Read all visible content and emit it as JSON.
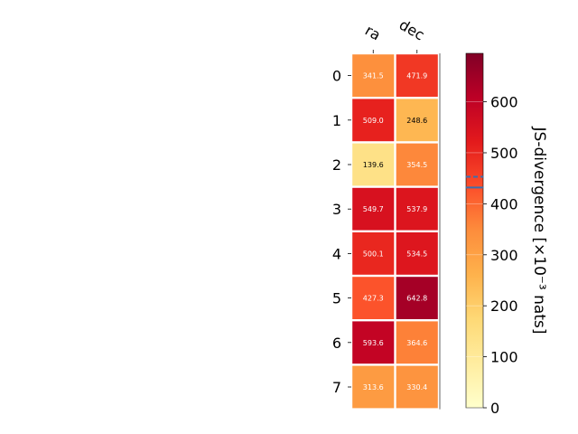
{
  "chart_data": {
    "type": "heatmap",
    "columns": [
      "ra",
      "dec"
    ],
    "rows": [
      "0",
      "1",
      "2",
      "3",
      "4",
      "5",
      "6",
      "7"
    ],
    "values": [
      [
        341.5,
        471.9
      ],
      [
        509.0,
        248.6
      ],
      [
        139.6,
        354.5
      ],
      [
        549.7,
        537.9
      ],
      [
        500.1,
        534.5
      ],
      [
        427.3,
        642.8
      ],
      [
        593.6,
        364.6
      ],
      [
        313.6,
        330.4
      ]
    ],
    "cell_labels": [
      [
        "341.5",
        "471.9"
      ],
      [
        "509.0",
        "248.6"
      ],
      [
        "139.6",
        "354.5"
      ],
      [
        "549.7",
        "537.9"
      ],
      [
        "500.1",
        "534.5"
      ],
      [
        "427.3",
        "642.8"
      ],
      [
        "593.6",
        "364.6"
      ],
      [
        "313.6",
        "330.4"
      ]
    ],
    "colorbar": {
      "label": "JS-divergence [×10⁻³ nats]",
      "range": [
        0,
        695
      ],
      "ticks": [
        0,
        100,
        200,
        300,
        400,
        500,
        600
      ],
      "tick_labels": [
        "0",
        "100",
        "200",
        "300",
        "400",
        "500",
        "600"
      ],
      "colormap": "YlOrRd",
      "markers": [
        {
          "value": 432,
          "style": "solid",
          "color": "#3a6fb0"
        },
        {
          "value": 453,
          "style": "dashed",
          "color": "#3a6fb0"
        }
      ]
    }
  }
}
